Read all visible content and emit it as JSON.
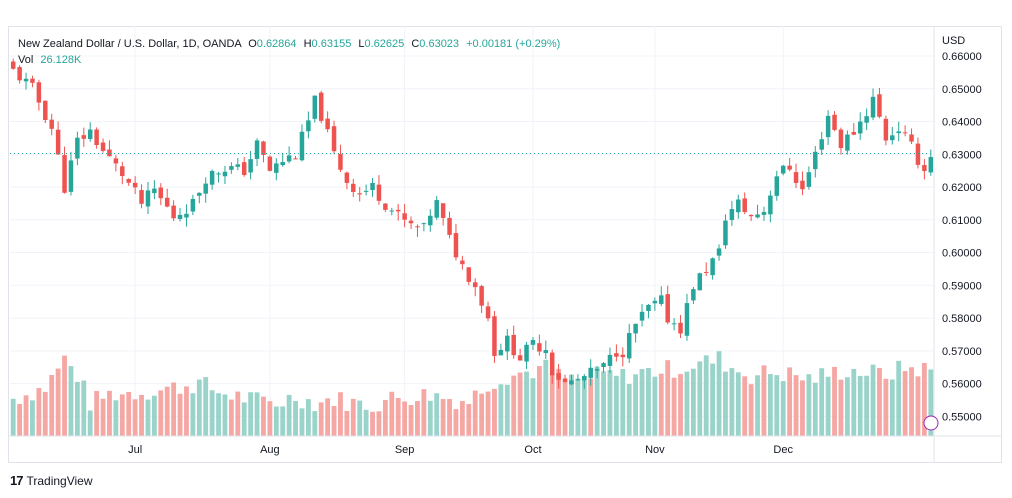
{
  "header": {
    "symbol": "New Zealand Dollar / U.S. Dollar, 1D, OANDA",
    "o_label": "O",
    "o_value": "0.62864",
    "h_label": "H",
    "h_value": "0.63155",
    "l_label": "L",
    "l_value": "0.62625",
    "c_label": "C",
    "c_value": "0.63023",
    "change": "+0.00181 (+0.29%)",
    "vol_label": "Vol",
    "vol_value": "26.128K"
  },
  "footer": {
    "brand": "TradingView",
    "logo": "tradingview-logo"
  },
  "colors": {
    "up": "#26a69a",
    "down": "#ef5350",
    "up_vol": "#9ad3ca",
    "down_vol": "#f5a7a4",
    "grid": "#f0f3fa",
    "price_line": "#26a69a"
  },
  "chart_data": {
    "type": "candlestick",
    "currency": "USD",
    "y_ticks": [
      "0.66000",
      "0.65000",
      "0.64000",
      "0.63000",
      "0.62000",
      "0.61000",
      "0.60000",
      "0.59000",
      "0.58000",
      "0.57000",
      "0.56000",
      "0.55000"
    ],
    "ylim": [
      0.544,
      0.66
    ],
    "x_ticks": [
      {
        "label": "Jul",
        "index": 19
      },
      {
        "label": "Aug",
        "index": 40
      },
      {
        "label": "Sep",
        "index": 61
      },
      {
        "label": "Oct",
        "index": 81
      },
      {
        "label": "Nov",
        "index": 100
      },
      {
        "label": "Dec",
        "index": 120
      }
    ],
    "current_price": 0.63023,
    "close_points": [
      [
        0,
        0.6555
      ],
      [
        3,
        0.65
      ],
      [
        6,
        0.638
      ],
      [
        8,
        0.62
      ],
      [
        10,
        0.634
      ],
      [
        12,
        0.637
      ],
      [
        14,
        0.631
      ],
      [
        17,
        0.624
      ],
      [
        20,
        0.615
      ],
      [
        22,
        0.619
      ],
      [
        25,
        0.611
      ],
      [
        28,
        0.615
      ],
      [
        30,
        0.623
      ],
      [
        33,
        0.626
      ],
      [
        36,
        0.625
      ],
      [
        38,
        0.633
      ],
      [
        40,
        0.625
      ],
      [
        42,
        0.628
      ],
      [
        44,
        0.63
      ],
      [
        46,
        0.64
      ],
      [
        47,
        0.646
      ],
      [
        48,
        0.642
      ],
      [
        50,
        0.63
      ],
      [
        52,
        0.622
      ],
      [
        54,
        0.618
      ],
      [
        56,
        0.62
      ],
      [
        58,
        0.615
      ],
      [
        60,
        0.611
      ],
      [
        62,
        0.608
      ],
      [
        64,
        0.607
      ],
      [
        65,
        0.612
      ],
      [
        66,
        0.615
      ],
      [
        68,
        0.604
      ],
      [
        70,
        0.596
      ],
      [
        72,
        0.59
      ],
      [
        74,
        0.58
      ],
      [
        75,
        0.57
      ],
      [
        77,
        0.573
      ],
      [
        79,
        0.568
      ],
      [
        81,
        0.572
      ],
      [
        83,
        0.571
      ],
      [
        84,
        0.564
      ],
      [
        86,
        0.56
      ],
      [
        88,
        0.561
      ],
      [
        90,
        0.563
      ],
      [
        92,
        0.565
      ],
      [
        94,
        0.57
      ],
      [
        95,
        0.57
      ],
      [
        97,
        0.578
      ],
      [
        99,
        0.583
      ],
      [
        101,
        0.585
      ],
      [
        102,
        0.58
      ],
      [
        104,
        0.577
      ],
      [
        106,
        0.59
      ],
      [
        108,
        0.595
      ],
      [
        110,
        0.6
      ],
      [
        111,
        0.611
      ],
      [
        113,
        0.615
      ],
      [
        115,
        0.611
      ],
      [
        117,
        0.613
      ],
      [
        119,
        0.624
      ],
      [
        121,
        0.626
      ],
      [
        123,
        0.619
      ],
      [
        125,
        0.63
      ],
      [
        127,
        0.642
      ],
      [
        129,
        0.633
      ],
      [
        131,
        0.637
      ],
      [
        133,
        0.643
      ],
      [
        134,
        0.647
      ],
      [
        136,
        0.635
      ],
      [
        138,
        0.638
      ],
      [
        140,
        0.632
      ],
      [
        142,
        0.625
      ],
      [
        143,
        0.6302
      ]
    ],
    "volume_points": [
      [
        0,
        0.34
      ],
      [
        5,
        0.44
      ],
      [
        8,
        0.7
      ],
      [
        10,
        0.55
      ],
      [
        12,
        0.3
      ],
      [
        15,
        0.38
      ],
      [
        20,
        0.4
      ],
      [
        23,
        0.42
      ],
      [
        26,
        0.45
      ],
      [
        29,
        0.48
      ],
      [
        32,
        0.4
      ],
      [
        35,
        0.36
      ],
      [
        38,
        0.32
      ],
      [
        41,
        0.3
      ],
      [
        44,
        0.36
      ],
      [
        47,
        0.3
      ],
      [
        50,
        0.34
      ],
      [
        53,
        0.3
      ],
      [
        56,
        0.28
      ],
      [
        59,
        0.34
      ],
      [
        62,
        0.36
      ],
      [
        65,
        0.38
      ],
      [
        68,
        0.34
      ],
      [
        71,
        0.32
      ],
      [
        74,
        0.48
      ],
      [
        77,
        0.55
      ],
      [
        80,
        0.58
      ],
      [
        83,
        0.62
      ],
      [
        86,
        0.5
      ],
      [
        89,
        0.52
      ],
      [
        92,
        0.56
      ],
      [
        95,
        0.54
      ],
      [
        98,
        0.58
      ],
      [
        101,
        0.6
      ],
      [
        104,
        0.62
      ],
      [
        107,
        0.66
      ],
      [
        110,
        0.7
      ],
      [
        112,
        0.62
      ],
      [
        115,
        0.55
      ],
      [
        118,
        0.58
      ],
      [
        121,
        0.56
      ],
      [
        124,
        0.52
      ],
      [
        127,
        0.56
      ],
      [
        130,
        0.6
      ],
      [
        133,
        0.58
      ],
      [
        136,
        0.56
      ],
      [
        139,
        0.62
      ],
      [
        143,
        0.6
      ]
    ]
  }
}
